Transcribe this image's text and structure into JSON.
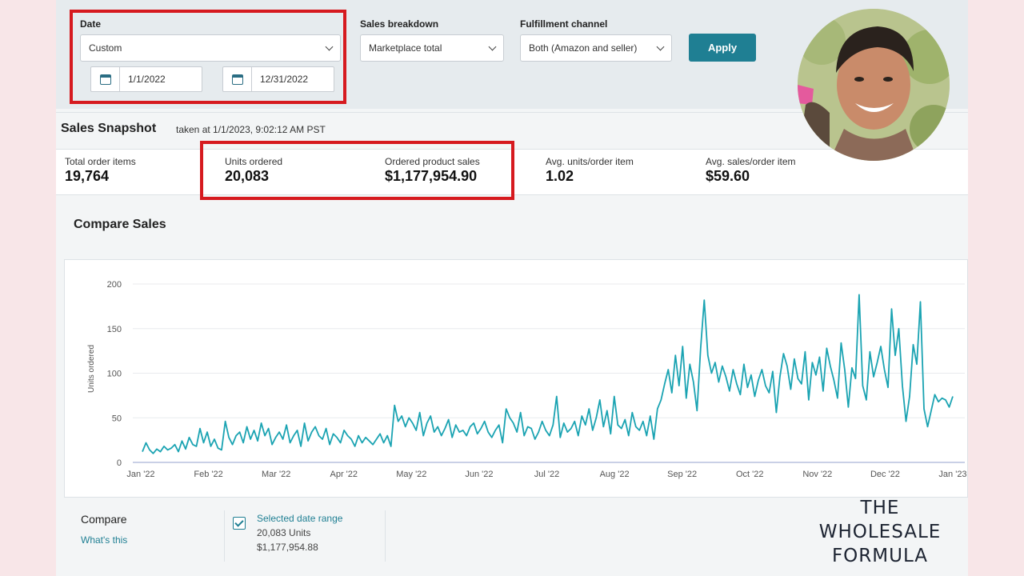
{
  "filters": {
    "date_label": "Date",
    "date_select": "Custom",
    "start_date": "1/1/2022",
    "end_date": "12/31/2022",
    "breakdown_label": "Sales breakdown",
    "breakdown_select": "Marketplace total",
    "channel_label": "Fulfillment channel",
    "channel_select": "Both (Amazon and seller)",
    "apply_label": "Apply"
  },
  "snapshot": {
    "title": "Sales Snapshot",
    "timestamp": "taken at 1/1/2023, 9:02:12 AM PST",
    "metrics": [
      {
        "label": "Total order items",
        "value": "19,764"
      },
      {
        "label": "Units ordered",
        "value": "20,083"
      },
      {
        "label": "Ordered product sales",
        "value": "$1,177,954.90"
      },
      {
        "label": "Avg. units/order item",
        "value": "1.02"
      },
      {
        "label": "Avg. sales/order item",
        "value": "$59.60"
      }
    ]
  },
  "compare_sales": {
    "title": "Compare Sales",
    "compare_title": "Compare",
    "whats_this": "What's this",
    "selected_label": "Selected date range",
    "selected_units": "20,083 Units",
    "selected_sales": "$1,177,954.88"
  },
  "colors": {
    "accent": "#1f7f93",
    "line": "#1aa3b2",
    "highlight": "#d61a1f"
  },
  "logo": {
    "line1": "THE",
    "line2": "WHOLESALE",
    "line3": "FORMULA"
  },
  "chart_data": {
    "type": "line",
    "ylabel": "Units ordered",
    "ylim": [
      0,
      200
    ],
    "yticks": [
      "0",
      "50",
      "100",
      "150",
      "200"
    ],
    "xticks": [
      "Jan '22",
      "Feb '22",
      "Mar '22",
      "Apr '22",
      "May '22",
      "Jun '22",
      "Jul '22",
      "Aug '22",
      "Sep '22",
      "Oct '22",
      "Nov '22",
      "Dec '22",
      "Jan '23"
    ],
    "grid": true,
    "series": [
      {
        "values": [
          12,
          22,
          14,
          10,
          15,
          12,
          18,
          14,
          16,
          20,
          12,
          24,
          15,
          28,
          20,
          18,
          38,
          22,
          34,
          18,
          26,
          16,
          14,
          46,
          28,
          20,
          30,
          34,
          22,
          40,
          26,
          36,
          24,
          44,
          30,
          38,
          20,
          28,
          34,
          26,
          42,
          22,
          30,
          36,
          18,
          44,
          24,
          34,
          40,
          30,
          26,
          38,
          20,
          32,
          28,
          22,
          36,
          30,
          26,
          18,
          30,
          22,
          28,
          24,
          20,
          26,
          32,
          22,
          30,
          18,
          64,
          46,
          52,
          40,
          50,
          44,
          36,
          56,
          30,
          44,
          52,
          34,
          40,
          30,
          38,
          48,
          28,
          42,
          34,
          36,
          30,
          40,
          44,
          32,
          38,
          46,
          34,
          28,
          36,
          42,
          22,
          60,
          50,
          44,
          34,
          56,
          30,
          40,
          38,
          26,
          34,
          46,
          36,
          30,
          42,
          74,
          28,
          44,
          34,
          38,
          46,
          30,
          52,
          42,
          60,
          36,
          50,
          70,
          40,
          58,
          32,
          74,
          42,
          38,
          48,
          30,
          56,
          40,
          36,
          46,
          30,
          52,
          26,
          60,
          70,
          88,
          104,
          78,
          120,
          86,
          130,
          72,
          110,
          90,
          58,
          128,
          182,
          120,
          100,
          112,
          90,
          108,
          96,
          80,
          104,
          88,
          76,
          110,
          84,
          98,
          74,
          92,
          104,
          86,
          78,
          102,
          56,
          96,
          122,
          108,
          82,
          116,
          94,
          88,
          124,
          70,
          112,
          98,
          118,
          80,
          128,
          108,
          92,
          72,
          134,
          104,
          62,
          106,
          94,
          188,
          86,
          70,
          124,
          96,
          112,
          130,
          104,
          84,
          172,
          120,
          150,
          86,
          46,
          74,
          132,
          110,
          180,
          60,
          40,
          58,
          76,
          68,
          72,
          70,
          62,
          74
        ]
      }
    ]
  }
}
